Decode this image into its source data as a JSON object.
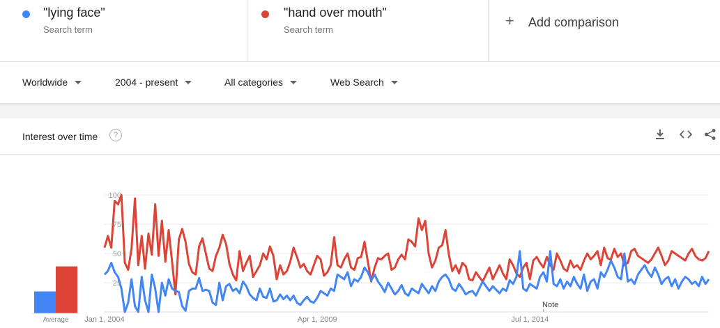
{
  "terms": [
    {
      "name": "\"lying face\"",
      "sub": "Search term",
      "color": "#4285f4"
    },
    {
      "name": "\"hand over mouth\"",
      "sub": "Search term",
      "color": "#db4437"
    }
  ],
  "add_comparison": {
    "label": "Add comparison",
    "icon": "plus-icon"
  },
  "filters": {
    "region": "Worldwide",
    "time": "2004 - present",
    "category": "All categories",
    "search_type": "Web Search"
  },
  "interest": {
    "title": "Interest over time",
    "help_icon": "help-circle-icon",
    "tools": [
      "download-icon",
      "embed-code-icon",
      "share-icon"
    ]
  },
  "chart_data": [
    {
      "type": "bar",
      "categories": [
        "Average"
      ],
      "series": [
        {
          "name": "\"lying face\"",
          "values": [
            21
          ],
          "color": "#4285f4"
        },
        {
          "name": "\"hand over mouth\"",
          "values": [
            45
          ],
          "color": "#db4437"
        }
      ],
      "ylim": [
        0,
        100
      ]
    },
    {
      "type": "line",
      "ylim": [
        0,
        100
      ],
      "yticks": [
        25,
        50,
        75,
        100
      ],
      "grid": true,
      "xticks": [
        {
          "label": "Jan 1, 2004",
          "month": 0
        },
        {
          "label": "Apr 1, 2009",
          "month": 63
        },
        {
          "label": "Jul 1, 2014",
          "month": 126
        }
      ],
      "months": 180,
      "annotation": {
        "label": "Note",
        "month": 130
      },
      "series": [
        {
          "name": "\"hand over mouth\"",
          "color": "#db4437",
          "values": [
            55,
            65,
            55,
            95,
            92,
            100,
            42,
            36,
            54,
            97,
            40,
            65,
            37,
            67,
            49,
            92,
            48,
            78,
            43,
            70,
            43,
            15,
            62,
            71,
            60,
            41,
            34,
            32,
            56,
            63,
            50,
            37,
            35,
            48,
            55,
            66,
            58,
            41,
            32,
            27,
            52,
            35,
            42,
            48,
            30,
            35,
            40,
            50,
            45,
            56,
            48,
            28,
            40,
            32,
            35,
            43,
            55,
            47,
            38,
            41,
            35,
            32,
            40,
            48,
            45,
            31,
            34,
            40,
            64,
            40,
            38,
            45,
            50,
            38,
            36,
            46,
            47,
            60,
            43,
            26,
            38,
            46,
            45,
            48,
            50,
            36,
            38,
            45,
            49,
            45,
            62,
            60,
            56,
            80,
            70,
            78,
            50,
            38,
            44,
            55,
            57,
            70,
            49,
            35,
            40,
            33,
            42,
            39,
            28,
            27,
            34,
            30,
            26,
            32,
            38,
            28,
            34,
            40,
            33,
            28,
            45,
            40,
            33,
            30,
            38,
            42,
            28,
            44,
            47,
            42,
            38,
            47,
            40,
            36,
            50,
            44,
            37,
            35,
            44,
            38,
            40,
            36,
            44,
            50,
            45,
            48,
            52,
            40,
            55,
            46,
            45,
            54,
            47,
            50,
            40,
            42,
            52,
            54,
            48,
            46,
            44,
            42,
            45,
            50,
            55,
            48,
            40,
            44,
            52,
            50,
            48,
            46,
            44,
            50,
            54,
            48,
            45,
            44,
            46,
            52
          ]
        },
        {
          "name": "\"lying face\"",
          "color": "#4285f4",
          "values": [
            32,
            35,
            42,
            34,
            30,
            20,
            0,
            8,
            28,
            5,
            0,
            30,
            10,
            0,
            32,
            20,
            0,
            25,
            14,
            28,
            20,
            18,
            17,
            5,
            1,
            18,
            20,
            20,
            29,
            18,
            19,
            18,
            8,
            6,
            25,
            10,
            22,
            24,
            18,
            20,
            16,
            26,
            22,
            15,
            12,
            10,
            20,
            13,
            12,
            20,
            9,
            10,
            15,
            11,
            14,
            10,
            14,
            8,
            6,
            10,
            13,
            9,
            8,
            12,
            18,
            16,
            14,
            20,
            18,
            32,
            30,
            28,
            34,
            22,
            28,
            26,
            30,
            38,
            34,
            27,
            32,
            26,
            22,
            17,
            25,
            20,
            15,
            18,
            23,
            16,
            14,
            20,
            18,
            16,
            24,
            20,
            16,
            22,
            18,
            26,
            30,
            32,
            28,
            20,
            18,
            24,
            20,
            15,
            17,
            18,
            14,
            20,
            26,
            22,
            18,
            22,
            19,
            16,
            20,
            18,
            27,
            24,
            30,
            52,
            20,
            18,
            24,
            22,
            20,
            30,
            34,
            26,
            52,
            24,
            22,
            28,
            20,
            26,
            22,
            30,
            24,
            20,
            32,
            18,
            26,
            28,
            20,
            34,
            30,
            36,
            44,
            38,
            30,
            28,
            50,
            26,
            28,
            24,
            32,
            36,
            40,
            34,
            30,
            38,
            32,
            24,
            28,
            30,
            22,
            28,
            20,
            26,
            30,
            28,
            24,
            26,
            22,
            30,
            24,
            28
          ]
        }
      ]
    }
  ]
}
